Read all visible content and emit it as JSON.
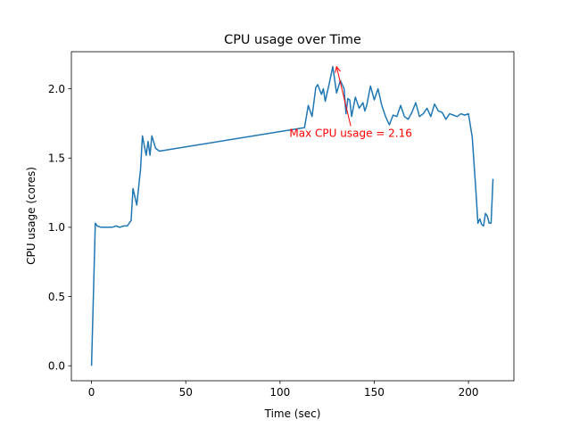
{
  "chart_data": {
    "type": "line",
    "title": "CPU usage over Time",
    "xlabel": "Time (sec)",
    "ylabel": "CPU usage (cores)",
    "xlim": [
      -10.7,
      224.1
    ],
    "ylim": [
      -0.108,
      2.268
    ],
    "xticks": [
      0,
      50,
      100,
      150,
      200
    ],
    "xtick_labels": [
      "0",
      "50",
      "100",
      "150",
      "200"
    ],
    "yticks": [
      0.0,
      0.5,
      1.0,
      1.5,
      2.0
    ],
    "ytick_labels": [
      "0.0",
      "0.5",
      "1.0",
      "1.5",
      "2.0"
    ],
    "grid": false,
    "line_color": "#1f77b4",
    "annotation": {
      "text": "Max CPU usage = 2.16",
      "color": "#ff0000",
      "point": [
        130,
        2.16
      ],
      "text_anchor_point": [
        105,
        1.66
      ]
    },
    "series": [
      {
        "x": [
          0,
          2,
          3,
          5,
          7,
          9,
          11,
          13,
          15,
          17,
          19,
          21,
          22,
          24,
          26,
          27,
          29,
          30,
          31,
          32,
          34,
          36,
          113,
          115,
          117,
          119,
          120,
          122,
          123,
          124,
          126,
          128,
          130,
          132,
          134,
          135,
          136,
          137,
          138,
          140,
          142,
          144,
          145,
          146,
          148,
          150,
          152,
          154,
          156,
          158,
          160,
          162,
          164,
          165,
          166,
          168,
          170,
          172,
          174,
          176,
          178,
          180,
          182,
          184,
          186,
          188,
          190,
          192,
          194,
          196,
          198,
          200,
          202,
          204,
          205,
          206,
          207,
          208,
          209,
          210,
          211,
          212,
          213
        ],
        "y": [
          0.0,
          1.03,
          1.01,
          1.0,
          1.0,
          1.0,
          1.0,
          1.01,
          1.0,
          1.01,
          1.01,
          1.05,
          1.28,
          1.16,
          1.42,
          1.66,
          1.52,
          1.62,
          1.52,
          1.66,
          1.57,
          1.55,
          1.72,
          1.88,
          1.8,
          2.01,
          2.03,
          1.96,
          2.0,
          1.91,
          2.03,
          2.16,
          1.97,
          2.06,
          2.0,
          1.82,
          1.93,
          1.92,
          1.8,
          1.94,
          1.86,
          1.9,
          1.84,
          1.88,
          2.02,
          1.92,
          2.0,
          1.88,
          1.8,
          1.74,
          1.81,
          1.8,
          1.88,
          1.84,
          1.8,
          1.78,
          1.83,
          1.9,
          1.8,
          1.82,
          1.86,
          1.8,
          1.89,
          1.84,
          1.83,
          1.78,
          1.82,
          1.81,
          1.8,
          1.82,
          1.81,
          1.82,
          1.65,
          1.25,
          1.03,
          1.06,
          1.02,
          1.01,
          1.1,
          1.08,
          1.03,
          1.03,
          1.35
        ]
      }
    ]
  }
}
